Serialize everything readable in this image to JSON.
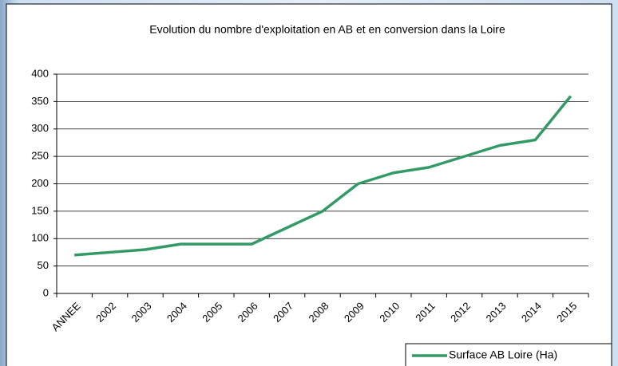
{
  "chart_data": {
    "type": "line",
    "title": "Evolution du nombre d'exploitation en AB et en conversion dans la Loire",
    "categories": [
      "ANNEE",
      "2002",
      "2003",
      "2004",
      "2005",
      "2006",
      "2007",
      "2008",
      "2009",
      "2010",
      "2011",
      "2012",
      "2013",
      "2014",
      "2015"
    ],
    "series": [
      {
        "name": "Surface AB Loire (Ha)",
        "color": "#339966",
        "values": [
          70,
          75,
          80,
          90,
          90,
          90,
          120,
          150,
          200,
          220,
          230,
          250,
          270,
          280,
          360
        ]
      }
    ],
    "ylim": [
      0,
      400
    ],
    "yticks": [
      0,
      50,
      100,
      150,
      200,
      250,
      300,
      350,
      400
    ],
    "grid": true,
    "legend": "bottom-right"
  }
}
